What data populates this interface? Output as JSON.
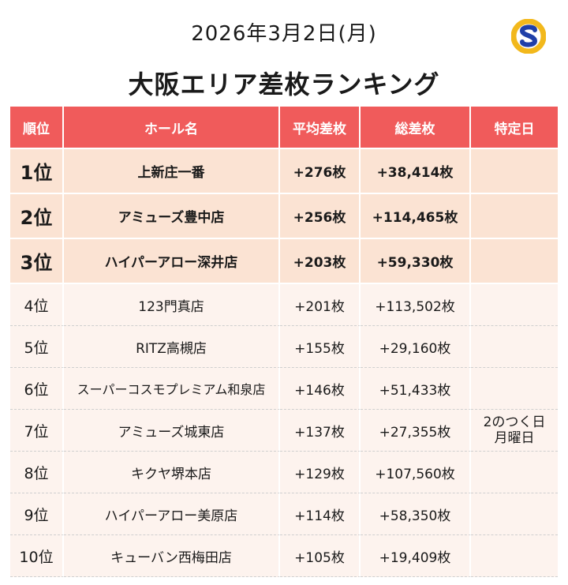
{
  "date": "2026年3月2日(月)",
  "title": "大阪エリア差枚ランキング",
  "headers": {
    "rank": "順位",
    "hall": "ホール名",
    "avg": "平均差枚",
    "total": "総差枚",
    "special": "特定日"
  },
  "rows": [
    {
      "rank": "1位",
      "hall": "上新庄一番",
      "avg": "+276枚",
      "total": "+38,414枚",
      "special": ""
    },
    {
      "rank": "2位",
      "hall": "アミューズ豊中店",
      "avg": "+256枚",
      "total": "+114,465枚",
      "special": ""
    },
    {
      "rank": "3位",
      "hall": "ハイパーアロー深井店",
      "avg": "+203枚",
      "total": "+59,330枚",
      "special": ""
    },
    {
      "rank": "4位",
      "hall": "123門真店",
      "avg": "+201枚",
      "total": "+113,502枚",
      "special": ""
    },
    {
      "rank": "5位",
      "hall": "RITZ高槻店",
      "avg": "+155枚",
      "total": "+29,160枚",
      "special": ""
    },
    {
      "rank": "6位",
      "hall": "スーパーコスモプレミアム和泉店",
      "avg": "+146枚",
      "total": "+51,433枚",
      "special": ""
    },
    {
      "rank": "7位",
      "hall": "アミューズ城東店",
      "avg": "+137枚",
      "total": "+27,355枚",
      "special": "2のつく日",
      "special2": "月曜日"
    },
    {
      "rank": "8位",
      "hall": "キクヤ堺本店",
      "avg": "+129枚",
      "total": "+107,560枚",
      "special": ""
    },
    {
      "rank": "9位",
      "hall": "ハイパーアロー美原店",
      "avg": "+114枚",
      "total": "+58,350枚",
      "special": ""
    },
    {
      "rank": "10位",
      "hall": "キューバン西梅田店",
      "avg": "+105枚",
      "total": "+19,409枚",
      "special": ""
    }
  ],
  "logo": {
    "icon": "s-logo-icon",
    "colors": {
      "ring": "#f2b81c",
      "letter": "#1f3fa8"
    }
  },
  "colors": {
    "header": "#f05b5b",
    "top_row": "#fbe3d3",
    "row": "#fdf3ee"
  }
}
